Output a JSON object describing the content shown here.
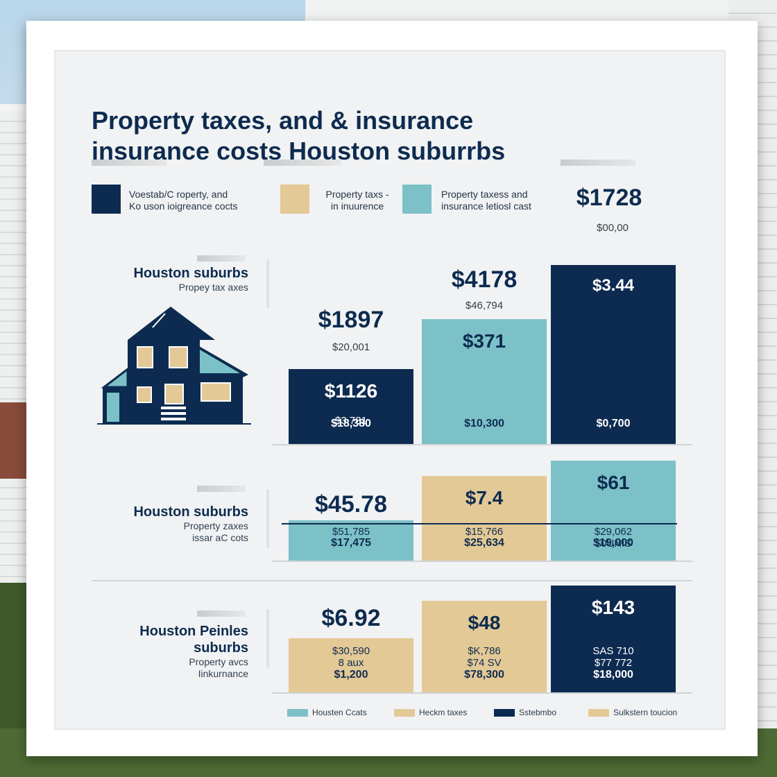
{
  "colors": {
    "navy": "#0d2b50",
    "teal": "#7cc1c7",
    "tan": "#e3c996",
    "panel": "#f1f2f3"
  },
  "title_lines": [
    "Property  taxes, and & insurance",
    "insurance costs Houston suburrbs"
  ],
  "legend": [
    {
      "color": "#0d2b50",
      "lines": [
        "Voestab/C roperty, and",
        "Ko uson ioigreance cocts"
      ]
    },
    {
      "color": "#e3c996",
      "lines": [
        "Property taxs -",
        "in inuurence"
      ]
    },
    {
      "color": "#7cc1c7",
      "lines": [
        "Property taxess and",
        "insurance letiosl cast"
      ]
    }
  ],
  "header_value": {
    "big": "$1728",
    "small": "$00,00"
  },
  "house_icon": "house-icon",
  "rows": [
    {
      "label_title": [
        "Houston suburbs"
      ],
      "label_sub": [
        "Propey tax axes"
      ],
      "floating": [
        {
          "big": "$1897",
          "small": "$20,001"
        },
        {
          "big": "$4178",
          "small": "$46,794"
        }
      ],
      "bars": [
        {
          "color": "#0d2b50",
          "top": "$1126",
          "mid": [
            "$3,781"
          ],
          "bot": "$18,380"
        },
        {
          "color": "#7cc1c7",
          "top": "$371",
          "mid": [],
          "bot": "$10,300"
        },
        {
          "color": "#0d2b50",
          "top": "$3.44",
          "mid": [],
          "bot": "$0,700"
        }
      ]
    },
    {
      "label_title": [
        "Houston suburbs"
      ],
      "label_sub": [
        "Property zaxes",
        "issar aC cots"
      ],
      "floating": [
        {
          "big": "$45.78",
          "small": ""
        }
      ],
      "bars": [
        {
          "color": "#7cc1c7",
          "top": "",
          "mid": [
            "$51,785"
          ],
          "bot": "$17,475"
        },
        {
          "color": "#e3c996",
          "top": "$7.4",
          "mid": [
            "$15,766"
          ],
          "bot": "$25,634"
        },
        {
          "color": "#7cc1c7",
          "top": "$61",
          "mid": [
            "$29,062",
            "$0UNIS"
          ],
          "bot": "$19,000"
        }
      ]
    },
    {
      "label_title": [
        "Houston Peinles",
        "suburbs"
      ],
      "label_sub": [
        "Property avcs",
        "Iinkurnance"
      ],
      "floating": [
        {
          "big": "$6.92",
          "small": ""
        }
      ],
      "bars": [
        {
          "color": "#e3c996",
          "top": "",
          "mid": [
            "$30,590",
            "8 aux"
          ],
          "bot": "$1,200"
        },
        {
          "color": "#e3c996",
          "top": "$48",
          "mid": [
            "$K,786",
            "$74 SV"
          ],
          "bot": "$78,300"
        },
        {
          "color": "#0d2b50",
          "top": "$143",
          "mid": [
            "SAS 710",
            "$77 772"
          ],
          "bot": "$18,000"
        }
      ]
    }
  ],
  "bottom_legend": [
    {
      "color": "#7cc1c7",
      "label": "Housten Ccats"
    },
    {
      "color": "#e3c996",
      "label": "Heckm taxes"
    },
    {
      "color": "#0d2b50",
      "label": "Sstebmbo"
    },
    {
      "color": "#e3c996",
      "label": "Sulkstern toucion"
    }
  ],
  "chart_data": {
    "type": "bar",
    "title": "Property  taxes, and & insurance insurance costs Houston suburrbs",
    "categories": [
      "Houston suburbs (Propey tax axes)",
      "Houston suburbs (Property zaxes)",
      "Houston Peinles suburbs (Property avcs)"
    ],
    "series": [
      {
        "values": [
          1126,
          45.78,
          6.92
        ]
      },
      {
        "values": [
          371,
          7.4,
          48
        ]
      },
      {
        "values": [
          3.44,
          61,
          143
        ]
      }
    ],
    "xlabel": "",
    "ylabel": "",
    "grid": false,
    "legend_position": "top"
  }
}
